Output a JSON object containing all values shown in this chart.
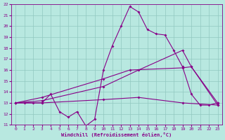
{
  "xlabel": "Windchill (Refroidissement éolien,°C)",
  "xlim": [
    -0.5,
    23.5
  ],
  "ylim": [
    11,
    22
  ],
  "xticks": [
    0,
    1,
    2,
    3,
    4,
    5,
    6,
    7,
    8,
    9,
    10,
    11,
    12,
    13,
    14,
    15,
    16,
    17,
    18,
    19,
    20,
    21,
    22,
    23
  ],
  "yticks": [
    11,
    12,
    13,
    14,
    15,
    16,
    17,
    18,
    19,
    20,
    21,
    22
  ],
  "bg_color": "#b8e8e0",
  "grid_color": "#90c8c0",
  "line_color": "#880088",
  "line1": [
    [
      0,
      13
    ],
    [
      1,
      13
    ],
    [
      2,
      13
    ],
    [
      3,
      13
    ],
    [
      4,
      13.8
    ],
    [
      5,
      12.2
    ],
    [
      6,
      11.7
    ],
    [
      7,
      12.2
    ],
    [
      8,
      10.9
    ],
    [
      9,
      11.5
    ],
    [
      10,
      16.0
    ],
    [
      11,
      18.2
    ],
    [
      12,
      20.0
    ],
    [
      13,
      21.8
    ],
    [
      14,
      21.3
    ],
    [
      15,
      19.7
    ],
    [
      16,
      19.3
    ],
    [
      17,
      19.2
    ],
    [
      18,
      17.8
    ],
    [
      19,
      16.3
    ],
    [
      20,
      13.8
    ],
    [
      21,
      12.8
    ],
    [
      22,
      12.8
    ],
    [
      23,
      13.0
    ]
  ],
  "line2": [
    [
      0,
      13
    ],
    [
      3,
      13.2
    ],
    [
      10,
      14.5
    ],
    [
      14,
      16.0
    ],
    [
      19,
      17.8
    ],
    [
      20,
      16.3
    ],
    [
      23,
      12.8
    ]
  ],
  "line3": [
    [
      0,
      13
    ],
    [
      3,
      13.5
    ],
    [
      10,
      15.2
    ],
    [
      13,
      16.0
    ],
    [
      19,
      16.2
    ],
    [
      20,
      16.3
    ],
    [
      23,
      13.0
    ]
  ],
  "line4": [
    [
      0,
      13
    ],
    [
      3,
      13.0
    ],
    [
      10,
      13.3
    ],
    [
      14,
      13.5
    ],
    [
      19,
      13.0
    ],
    [
      23,
      12.8
    ]
  ]
}
